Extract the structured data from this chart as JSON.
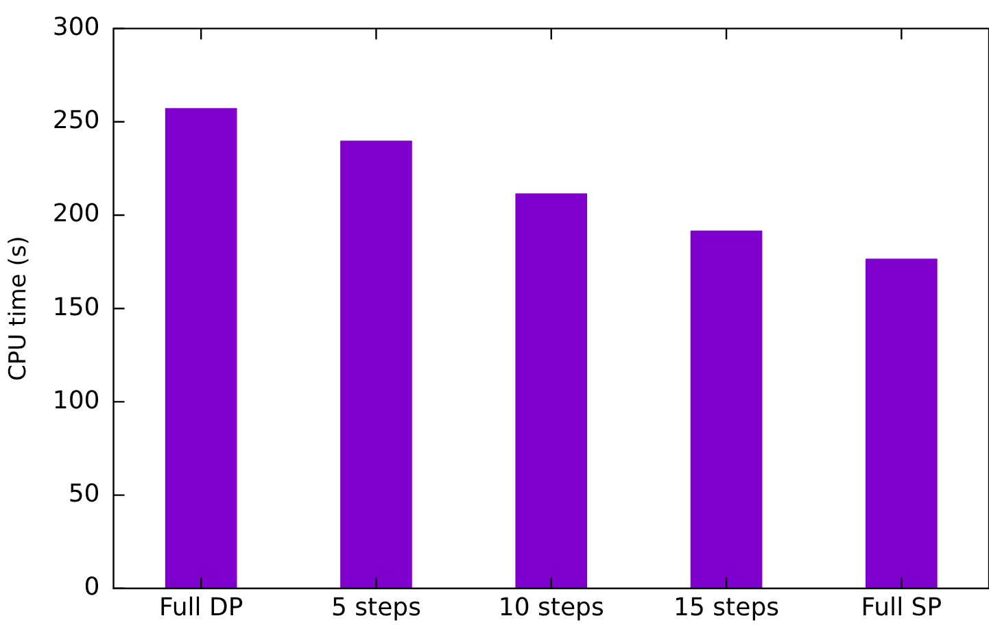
{
  "chart_data": {
    "type": "bar",
    "ylabel": "CPU time (s)",
    "categories": [
      "Full DP",
      "5 steps",
      "10 steps",
      "15 steps",
      "Full SP"
    ],
    "values": [
      257.4,
      239.9,
      211.7,
      191.7,
      176.7
    ],
    "color": "#7f00cc",
    "ylim": [
      0,
      300
    ],
    "yticks": [
      0,
      50,
      100,
      150,
      200,
      250,
      300
    ],
    "grid": false,
    "legend": false
  }
}
